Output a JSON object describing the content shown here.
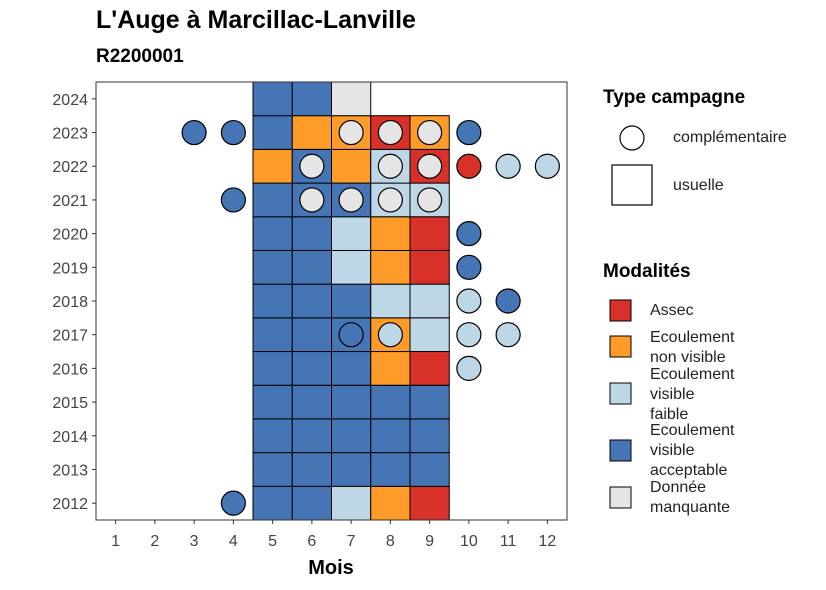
{
  "title": "L'Auge à Marcillac-Lanville",
  "subtitle": "R2200001",
  "legend": {
    "type_title": "Type campagne",
    "type_items": [
      {
        "key": "complementaire",
        "label": "complémentaire",
        "shape": "circle"
      },
      {
        "key": "usuelle",
        "label": "usuelle",
        "shape": "square"
      }
    ],
    "mod_title": "Modalités",
    "mod_items": [
      {
        "key": "A",
        "label_lines": [
          "Assec"
        ],
        "color": "#d7312a"
      },
      {
        "key": "N",
        "label_lines": [
          "Ecoulement",
          "non visible"
        ],
        "color": "#ff9c29"
      },
      {
        "key": "F",
        "label_lines": [
          "Ecoulement",
          "visible",
          "faible"
        ],
        "color": "#bdd7e7"
      },
      {
        "key": "V",
        "label_lines": [
          "Ecoulement",
          "visible",
          "acceptable"
        ],
        "color": "#4575b4"
      },
      {
        "key": "M",
        "label_lines": [
          "Donnée",
          "manquante"
        ],
        "color": "#e5e5e5"
      }
    ]
  },
  "chart_data": {
    "type": "heatmap",
    "title": "L'Auge à Marcillac-Lanville",
    "subtitle": "R2200001",
    "xlabel": "Mois",
    "ylabel": "",
    "x_ticks": [
      "1",
      "2",
      "3",
      "4",
      "5",
      "6",
      "7",
      "8",
      "9",
      "10",
      "11",
      "12"
    ],
    "y_ticks": [
      "2012",
      "2013",
      "2014",
      "2015",
      "2016",
      "2017",
      "2018",
      "2019",
      "2020",
      "2021",
      "2022",
      "2023",
      "2024"
    ],
    "xlim": [
      0.5,
      12.5
    ],
    "ylim": [
      2011.5,
      2024.5
    ],
    "grid": false,
    "legend_position": "right",
    "colors": {
      "A": "#d7312a",
      "N": "#ff9c29",
      "F": "#bdd7e7",
      "V": "#4575b4",
      "M": "#e5e5e5"
    },
    "usuelle": {
      "2024": {
        "5": "V",
        "6": "V",
        "7": "M"
      },
      "2023": {
        "5": "V",
        "6": "N",
        "7": "N",
        "8": "A",
        "9": "N"
      },
      "2022": {
        "5": "N",
        "6": "V",
        "7": "N",
        "8": "F",
        "9": "A"
      },
      "2021": {
        "5": "V",
        "6": "V",
        "7": "V",
        "8": "F",
        "9": "F"
      },
      "2020": {
        "5": "V",
        "6": "V",
        "7": "F",
        "8": "N",
        "9": "A"
      },
      "2019": {
        "5": "V",
        "6": "V",
        "7": "F",
        "8": "N",
        "9": "A"
      },
      "2018": {
        "5": "V",
        "6": "V",
        "7": "V",
        "8": "F",
        "9": "F"
      },
      "2017": {
        "5": "V",
        "6": "V",
        "7": "V",
        "8": "N",
        "9": "F"
      },
      "2016": {
        "5": "V",
        "6": "V",
        "7": "V",
        "8": "N",
        "9": "A"
      },
      "2015": {
        "5": "V",
        "6": "V",
        "7": "V",
        "8": "V",
        "9": "V"
      },
      "2014": {
        "5": "V",
        "6": "V",
        "7": "V",
        "8": "V",
        "9": "V"
      },
      "2013": {
        "5": "V",
        "6": "V",
        "7": "V",
        "8": "V",
        "9": "V"
      },
      "2012": {
        "5": "V",
        "6": "V",
        "7": "F",
        "8": "N",
        "9": "A"
      }
    },
    "complementaire": [
      {
        "year": 2023,
        "month": 3,
        "mod": "V"
      },
      {
        "year": 2023,
        "month": 4,
        "mod": "V"
      },
      {
        "year": 2023,
        "month": 7,
        "mod": "M"
      },
      {
        "year": 2023,
        "month": 8,
        "mod": "M"
      },
      {
        "year": 2023,
        "month": 9,
        "mod": "M"
      },
      {
        "year": 2023,
        "month": 10,
        "mod": "V"
      },
      {
        "year": 2022,
        "month": 6,
        "mod": "M"
      },
      {
        "year": 2022,
        "month": 8,
        "mod": "M"
      },
      {
        "year": 2022,
        "month": 9,
        "mod": "M"
      },
      {
        "year": 2022,
        "month": 10,
        "mod": "A"
      },
      {
        "year": 2022,
        "month": 11,
        "mod": "F"
      },
      {
        "year": 2022,
        "month": 12,
        "mod": "F"
      },
      {
        "year": 2021,
        "month": 4,
        "mod": "V"
      },
      {
        "year": 2021,
        "month": 6,
        "mod": "M"
      },
      {
        "year": 2021,
        "month": 7,
        "mod": "M"
      },
      {
        "year": 2021,
        "month": 8,
        "mod": "M"
      },
      {
        "year": 2021,
        "month": 9,
        "mod": "M"
      },
      {
        "year": 2020,
        "month": 10,
        "mod": "V"
      },
      {
        "year": 2019,
        "month": 10,
        "mod": "V"
      },
      {
        "year": 2018,
        "month": 10,
        "mod": "F"
      },
      {
        "year": 2018,
        "month": 11,
        "mod": "V"
      },
      {
        "year": 2017,
        "month": 7,
        "mod": "V"
      },
      {
        "year": 2017,
        "month": 8,
        "mod": "F"
      },
      {
        "year": 2017,
        "month": 10,
        "mod": "F"
      },
      {
        "year": 2017,
        "month": 11,
        "mod": "F"
      },
      {
        "year": 2016,
        "month": 10,
        "mod": "F"
      },
      {
        "year": 2012,
        "month": 4,
        "mod": "V"
      }
    ]
  }
}
